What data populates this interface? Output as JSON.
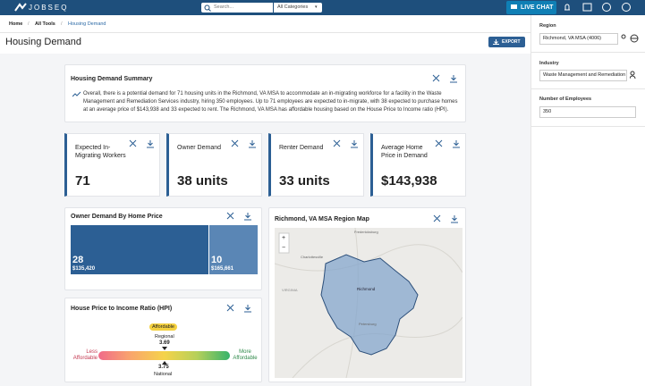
{
  "top_bar": {
    "logo": "JOBSEQ",
    "search_placeholder": "Search...",
    "category": "All Categories",
    "live_chat": "LIVE CHAT"
  },
  "breadcrumb": [
    "Home",
    "All Tools",
    "Housing Demand"
  ],
  "page": {
    "title": "Housing Demand",
    "export": "EXPORT"
  },
  "summary": {
    "title": "Housing Demand Summary",
    "text": "Overall, there is a potential demand for 71 housing units in the Richmond, VA MSA to accommodate an in-migrating workforce for a facility in the Waste Management and Remediation Services industry, hiring 350 employees. Up to 71 employees are expected to in-migrate, with 38 expected to purchase homes at an average price of $143,938 and 33 expected to rent. The Richmond, VA MSA has affordable housing based on the House Price to Income ratio (HPI)."
  },
  "stats": [
    {
      "label": "Expected In-Migrating Workers",
      "value": "71"
    },
    {
      "label": "Owner Demand",
      "value": "38 units"
    },
    {
      "label": "Renter Demand",
      "value": "33 units"
    },
    {
      "label": "Average Home Price in Demand",
      "value": "$143,938"
    }
  ],
  "owner_demand": {
    "title": "Owner Demand By Home Price",
    "cells": [
      {
        "count": "28",
        "price": "$135,420"
      },
      {
        "count": "10",
        "price": "$165,661"
      }
    ]
  },
  "map": {
    "title": "Richmond, VA MSA Region Map",
    "places": [
      "Fredericksburg",
      "Charlottesville",
      "VIRGINIA",
      "Richmond",
      "Petersburg"
    ],
    "zoom_in": "+",
    "zoom_out": "−"
  },
  "hpi": {
    "title": "House Price to Income Ratio (HPI)",
    "badge": "Affordable",
    "regional_label": "Regional",
    "regional_value": "3.69",
    "national_value": "3.75",
    "national_label": "National",
    "less": "Less Affordable",
    "more": "More Affordable"
  },
  "sidebar": {
    "region_label": "Region",
    "region_value": "Richmond, VA MSA (4006)",
    "industry_label": "Industry",
    "industry_value": "Waste Management and Remediation",
    "employees_label": "Number of Employees",
    "employees_value": "350"
  }
}
